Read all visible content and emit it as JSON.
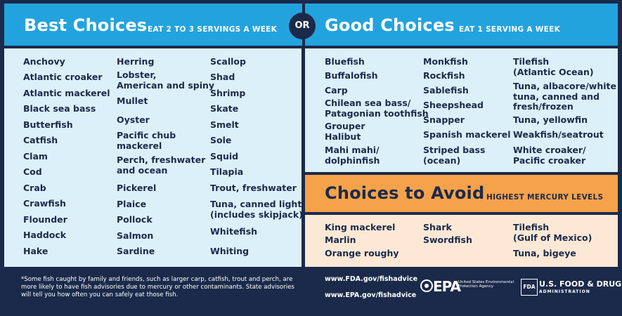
{
  "best": {
    "title": "Best Choices",
    "subtitle": "EAT 2 TO 3 SERVINGS A WEEK",
    "col1": [
      "Anchovy",
      "Atlantic croaker",
      "Atlantic mackerel",
      "Black sea bass",
      "Butterfish",
      "Catfish",
      "Clam",
      "Cod",
      "Crab",
      "Crawfish",
      "Flounder",
      "Haddock",
      "Hake"
    ],
    "col2": [
      "Herring",
      "Lobster,\nAmerican and spiny",
      "Mullet",
      "Oyster",
      "Pacific chub\nmackerel",
      "Perch, freshwater\nand ocean",
      "Pickerel",
      "Plaice",
      "Pollock",
      "Salmon",
      "Sardine"
    ],
    "col3": [
      "Scallop",
      "Shad",
      "Shrimp",
      "Skate",
      "Smelt",
      "Sole",
      "Squid",
      "Tilapia",
      "Trout, freshwater",
      "Tuna, canned light\n(includes skipjack)",
      "Whitefish",
      "Whiting"
    ]
  },
  "or_label": "OR",
  "good": {
    "title": "Good Choices",
    "subtitle": "EAT 1 SERVING A WEEK",
    "col1": [
      "Bluefish",
      "Buffalofish",
      "Carp",
      "Chilean sea bass/\nPatagonian toothfish",
      "Grouper",
      "Halibut",
      "Mahi mahi/\ndolphinfish"
    ],
    "col2": [
      "Monkfish",
      "Rockfish",
      "Sablefish",
      "Sheepshead",
      "Snapper",
      "Spanish mackerel",
      "Striped bass\n(ocean)"
    ],
    "col3": [
      "Tilefish\n(Atlantic Ocean)",
      "Tuna, albacore/white\ntuna, canned and\nfresh/frozen",
      "Tuna, yellowfin",
      "Weakfish/seatrout",
      "White croaker/\nPacific croaker"
    ]
  },
  "avoid": {
    "title": "Choices to Avoid",
    "subtitle": "HIGHEST MERCURY LEVELS",
    "col1": [
      "King mackerel",
      "Marlin",
      "Orange roughy"
    ],
    "col2": [
      "Shark",
      "Swordfish"
    ],
    "col3": [
      "Tilefish\n(Gulf of Mexico)",
      "Tuna, bigeye"
    ]
  },
  "footer": {
    "note": "*Some fish caught by family and friends, such as larger carp, catfish, trout and perch, are more likely to have fish advisories due to mercury or other contaminants. State advisories will tell you how often you can safely eat those fish.",
    "fda_link": "www.FDA.gov/fishadvice",
    "epa_link": "www.EPA.gov/fishadvice",
    "epa_word": "EPA",
    "epa_agency": "United States Environmental Protection Agency",
    "fda_badge": "FDA",
    "fda_title": "U.S. FOOD & DRUG",
    "fda_sub": "ADMINISTRATION"
  }
}
